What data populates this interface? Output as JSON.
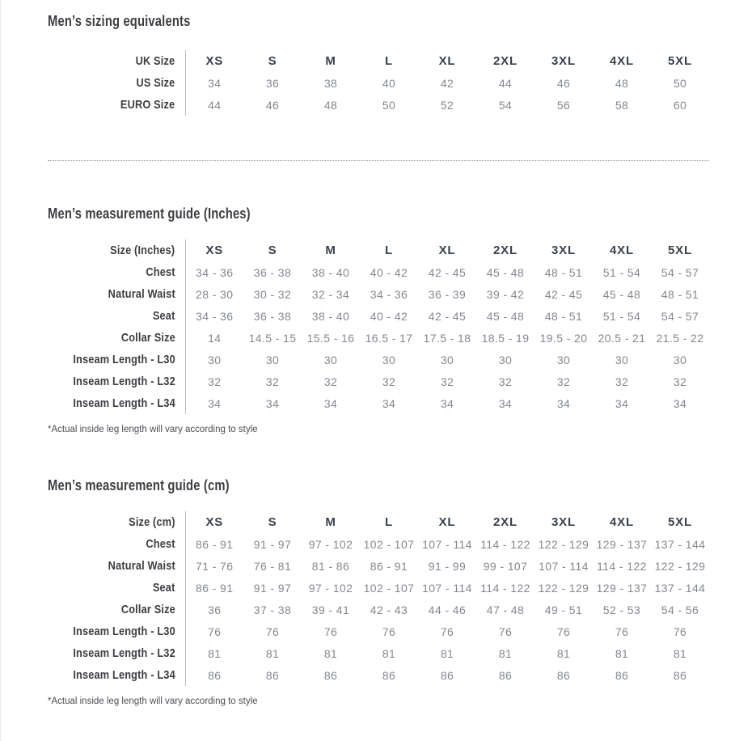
{
  "colors": {
    "heading": "#3c3e42",
    "column_header": "#3b414d",
    "value_text": "#83878e",
    "table_divider": "#b9bcc1",
    "dotted_separator": "#97999e",
    "footnote_text": "#4b4e53",
    "background": "#ffffff"
  },
  "sections": [
    {
      "title": "Men’s sizing equivalents",
      "table": {
        "rows": [
          {
            "label": "UK Size",
            "values": [
              "XS",
              "S",
              "M",
              "L",
              "XL",
              "2XL",
              "3XL",
              "4XL",
              "5XL"
            ]
          },
          {
            "label": "US Size",
            "values": [
              "34",
              "36",
              "38",
              "40",
              "42",
              "44",
              "46",
              "48",
              "50"
            ]
          },
          {
            "label": "EURO Size",
            "values": [
              "44",
              "46",
              "48",
              "50",
              "52",
              "54",
              "56",
              "58",
              "60"
            ]
          }
        ]
      }
    },
    {
      "title": "Men’s measurement guide (Inches)",
      "footnote": "*Actual inside leg length will vary according to style",
      "table": {
        "rows": [
          {
            "label": "Size (Inches)",
            "values": [
              "XS",
              "S",
              "M",
              "L",
              "XL",
              "2XL",
              "3XL",
              "4XL",
              "5XL"
            ]
          },
          {
            "label": "Chest",
            "values": [
              "34 - 36",
              "36 - 38",
              "38 - 40",
              "40 - 42",
              "42 - 45",
              "45 - 48",
              "48 - 51",
              "51 - 54",
              "54 - 57"
            ]
          },
          {
            "label": "Natural Waist",
            "values": [
              "28 - 30",
              "30 - 32",
              "32 - 34",
              "34 - 36",
              "36 - 39",
              "39 - 42",
              "42 - 45",
              "45 - 48",
              "48 - 51"
            ]
          },
          {
            "label": "Seat",
            "values": [
              "34 - 36",
              "36 - 38",
              "38 - 40",
              "40 - 42",
              "42 - 45",
              "45 - 48",
              "48 - 51",
              "51 - 54",
              "54 - 57"
            ]
          },
          {
            "label": "Collar Size",
            "values": [
              "14",
              "14.5 - 15",
              "15.5 - 16",
              "16.5 - 17",
              "17.5 - 18",
              "18.5 - 19",
              "19.5 - 20",
              "20.5 - 21",
              "21.5 - 22"
            ]
          },
          {
            "label": "Inseam Length - L30",
            "values": [
              "30",
              "30",
              "30",
              "30",
              "30",
              "30",
              "30",
              "30",
              "30"
            ]
          },
          {
            "label": "Inseam Length - L32",
            "values": [
              "32",
              "32",
              "32",
              "32",
              "32",
              "32",
              "32",
              "32",
              "32"
            ]
          },
          {
            "label": "Inseam Length - L34",
            "values": [
              "34",
              "34",
              "34",
              "34",
              "34",
              "34",
              "34",
              "34",
              "34"
            ]
          }
        ]
      }
    },
    {
      "title": "Men’s measurement guide (cm)",
      "footnote": "*Actual inside leg length will vary according to style",
      "table": {
        "rows": [
          {
            "label": "Size (cm)",
            "values": [
              "XS",
              "S",
              "M",
              "L",
              "XL",
              "2XL",
              "3XL",
              "4XL",
              "5XL"
            ]
          },
          {
            "label": "Chest",
            "values": [
              "86 - 91",
              "91 - 97",
              "97 - 102",
              "102 - 107",
              "107 - 114",
              "114 - 122",
              "122 - 129",
              "129 - 137",
              "137 - 144"
            ]
          },
          {
            "label": "Natural Waist",
            "values": [
              "71 - 76",
              "76 - 81",
              "81 - 86",
              "86 - 91",
              "91 - 99",
              "99 - 107",
              "107 - 114",
              "114 - 122",
              "122 - 129"
            ]
          },
          {
            "label": "Seat",
            "values": [
              "86 - 91",
              "91 - 97",
              "97 - 102",
              "102 - 107",
              "107 - 114",
              "114 - 122",
              "122 - 129",
              "129 - 137",
              "137 - 144"
            ]
          },
          {
            "label": "Collar Size",
            "values": [
              "36",
              "37 - 38",
              "39 - 41",
              "42 - 43",
              "44 - 46",
              "47 - 48",
              "49 - 51",
              "52 - 53",
              "54 - 56"
            ]
          },
          {
            "label": "Inseam Length - L30",
            "values": [
              "76",
              "76",
              "76",
              "76",
              "76",
              "76",
              "76",
              "76",
              "76"
            ]
          },
          {
            "label": "Inseam Length - L32",
            "values": [
              "81",
              "81",
              "81",
              "81",
              "81",
              "81",
              "81",
              "81",
              "81"
            ]
          },
          {
            "label": "Inseam Length - L34",
            "values": [
              "86",
              "86",
              "86",
              "86",
              "86",
              "86",
              "86",
              "86",
              "86"
            ]
          }
        ]
      }
    }
  ]
}
